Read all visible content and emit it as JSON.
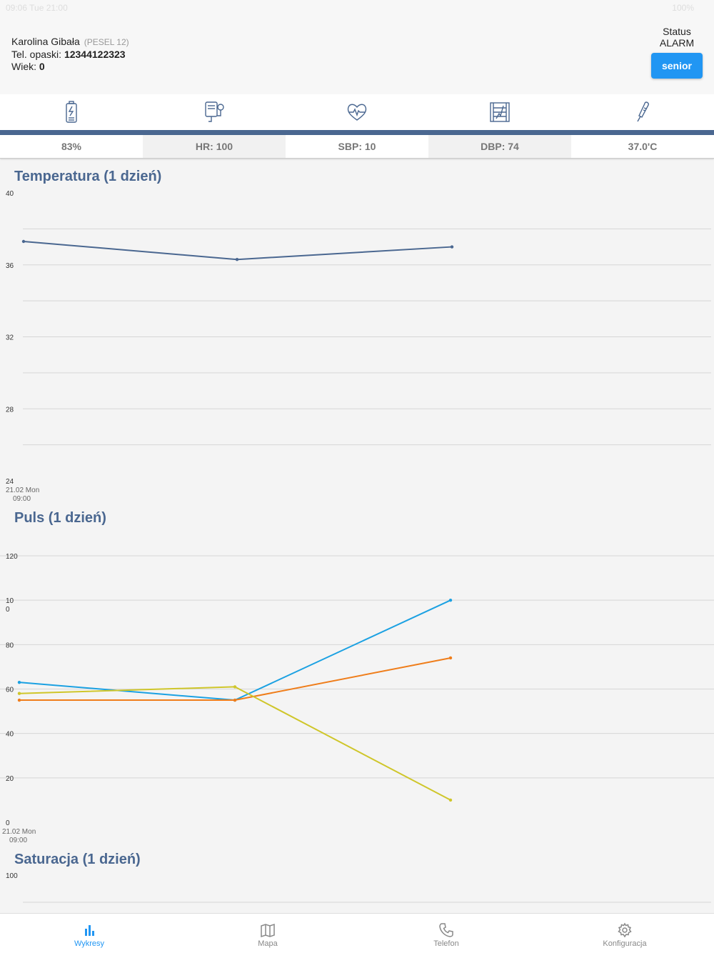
{
  "status_bar": {
    "left": "09:06  Tue 21:00",
    "right": "100%"
  },
  "patient": {
    "name": "Karolina Gibała",
    "pesel": "(PESEL 12)",
    "phone_label": "Tel. opaski:",
    "phone": "12344122323",
    "age_label": "Wiek:",
    "age": "0"
  },
  "status": {
    "label": "Status",
    "value": "ALARM",
    "button": "senior"
  },
  "icons": [
    "battery-icon",
    "blood-pressure-icon",
    "heart-rate-icon",
    "chart-panel-icon",
    "thermometer-icon"
  ],
  "readings": [
    "83%",
    "HR: 100",
    "SBP: 10",
    "DBP: 74",
    "37.0'C"
  ],
  "accent_color": "#4a6790",
  "chart_data": [
    {
      "type": "line",
      "title": "Temperatura (1 dzień)",
      "y_ticks": [
        "40",
        "36",
        "32",
        "28",
        "24"
      ],
      "ylim": [
        24,
        40
      ],
      "x_label": [
        "21.02 Mon",
        "09:00"
      ],
      "x": [
        0,
        1,
        2
      ],
      "series": [
        {
          "color": "#4a6790",
          "values": [
            37.3,
            36.3,
            37.0
          ]
        }
      ],
      "grid": true
    },
    {
      "type": "line",
      "title": "Puls (1 dzień)",
      "y_ticks": [
        "120",
        "10\n0",
        "80",
        "60",
        "40",
        "20",
        "0"
      ],
      "ylim": [
        0,
        120
      ],
      "x_label": [
        "21.02 Mon",
        "09:00"
      ],
      "x": [
        0,
        1,
        2
      ],
      "series": [
        {
          "color": "#1ba1e2",
          "values": [
            63,
            55,
            100
          ]
        },
        {
          "color": "#ef7d1a",
          "values": [
            55,
            55,
            74
          ]
        },
        {
          "color": "#cfc62a",
          "values": [
            58,
            61,
            10
          ]
        }
      ],
      "grid": true
    },
    {
      "type": "line",
      "title": "Saturacja (1 dzień)",
      "y_ticks": [
        "100"
      ],
      "ylim": [
        0,
        100
      ],
      "series": [],
      "grid": true
    }
  ],
  "tabs": [
    {
      "label": "Wykresy",
      "icon": "bar-chart-icon",
      "active": true
    },
    {
      "label": "Mapa",
      "icon": "map-icon",
      "active": false
    },
    {
      "label": "Telefon",
      "icon": "phone-icon",
      "active": false
    },
    {
      "label": "Konfiguracja",
      "icon": "gear-icon",
      "active": false
    }
  ]
}
